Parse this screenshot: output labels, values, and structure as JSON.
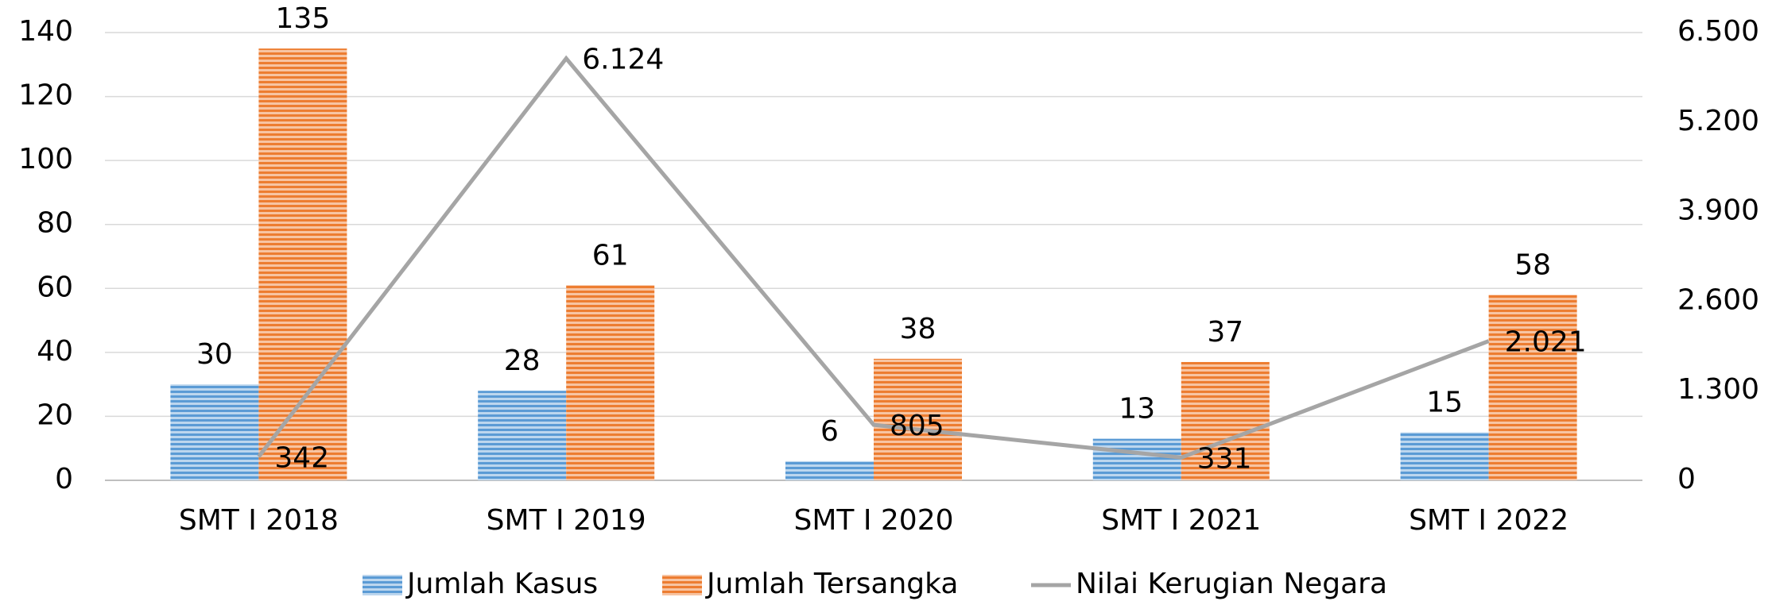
{
  "chart_data": {
    "type": "bar",
    "categories": [
      "SMT I 2018",
      "SMT I 2019",
      "SMT I 2020",
      "SMT I 2021",
      "SMT I 2022"
    ],
    "series": [
      {
        "name": "Jumlah Kasus",
        "color": "#5b9bd5",
        "values": [
          30,
          28,
          6,
          13,
          15
        ]
      },
      {
        "name": "Jumlah Tersangka",
        "color": "#ed7d31",
        "values": [
          135,
          61,
          38,
          37,
          58
        ]
      },
      {
        "name": "Nilai Kerugian Negara",
        "color": "#a5a5a5",
        "type": "line",
        "axis": "y2",
        "values": [
          342,
          6124,
          805,
          331,
          2021
        ],
        "value_labels": [
          "342",
          "6.124",
          "805",
          "331",
          "2.021"
        ]
      }
    ],
    "ylim": [
      0,
      140
    ],
    "yticks": [
      0,
      20,
      40,
      60,
      80,
      100,
      120,
      140
    ],
    "y2lim": [
      0,
      6500
    ],
    "y2ticks": [
      0,
      {
        "value": 1300,
        "label": "1.300"
      },
      {
        "value": 2600,
        "label": "2.600"
      },
      {
        "value": 3900,
        "label": "3.900"
      },
      {
        "value": 5200,
        "label": "5.200"
      },
      {
        "value": 6500,
        "label": "6.500"
      }
    ],
    "grid": true,
    "legend": "bottom"
  }
}
